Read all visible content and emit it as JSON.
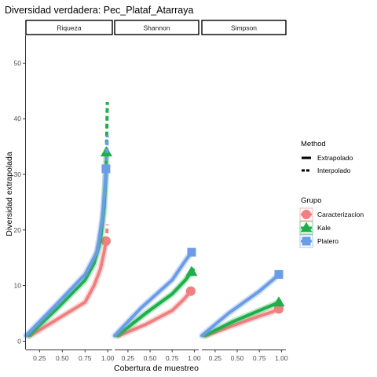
{
  "chart_data": {
    "type": "line",
    "title": "Diversidad verdadera: Pec_Plataf_Atarraya",
    "xlabel": "Cobertura de muestreo",
    "ylabel": "Diversidad extrapolada",
    "x_ticks": [
      "0.25",
      "0.50",
      "0.75",
      "1.00"
    ],
    "x_tick_values": [
      0.25,
      0.5,
      0.75,
      1.0
    ],
    "xlim": [
      0.1,
      1.05
    ],
    "y_ticks": [
      "0",
      "10",
      "20",
      "30",
      "40",
      "50"
    ],
    "y_tick_values": [
      0,
      10,
      20,
      30,
      40,
      50
    ],
    "ylim": [
      -1.5,
      55
    ],
    "grid": false,
    "legend_position": "right",
    "panels": [
      {
        "strip": "Riqueza",
        "series": [
          {
            "group": "Caracterizacion",
            "interpolated": [
              [
                0.15,
                1
              ],
              [
                0.45,
                4
              ],
              [
                0.75,
                7
              ],
              [
                0.85,
                10
              ],
              [
                0.92,
                13
              ],
              [
                0.96,
                16
              ],
              [
                0.98,
                18
              ]
            ],
            "extrapolated": [
              [
                0.98,
                18
              ],
              [
                0.99,
                19.5
              ],
              [
                0.995,
                21
              ]
            ],
            "observed": [
              0.98,
              18
            ]
          },
          {
            "group": "Kale",
            "interpolated": [
              [
                0.13,
                1
              ],
              [
                0.45,
                6
              ],
              [
                0.75,
                11
              ],
              [
                0.85,
                14
              ],
              [
                0.92,
                18
              ],
              [
                0.96,
                24
              ],
              [
                0.98,
                30
              ],
              [
                0.985,
                34
              ]
            ],
            "extrapolated": [
              [
                0.985,
                34
              ],
              [
                0.99,
                38.5
              ],
              [
                0.995,
                43
              ]
            ],
            "observed": [
              0.985,
              34
            ]
          },
          {
            "group": "Platero",
            "interpolated": [
              [
                0.1,
                1
              ],
              [
                0.4,
                6
              ],
              [
                0.75,
                12
              ],
              [
                0.88,
                16
              ],
              [
                0.94,
                22
              ],
              [
                0.97,
                28
              ],
              [
                0.98,
                31
              ]
            ],
            "extrapolated": [
              [
                0.98,
                31
              ],
              [
                0.99,
                34
              ],
              [
                0.995,
                37
              ]
            ],
            "observed": [
              0.98,
              31
            ]
          }
        ]
      },
      {
        "strip": "Shannon",
        "series": [
          {
            "group": "Caracterizacion",
            "interpolated": [
              [
                0.15,
                1
              ],
              [
                0.45,
                3
              ],
              [
                0.75,
                5.5
              ],
              [
                0.88,
                7.5
              ],
              [
                0.96,
                9
              ]
            ],
            "extrapolated": [
              [
                0.96,
                9
              ],
              [
                0.98,
                9.3
              ],
              [
                1.0,
                9.6
              ]
            ],
            "observed": [
              0.96,
              9
            ]
          },
          {
            "group": "Kale",
            "interpolated": [
              [
                0.13,
                1
              ],
              [
                0.45,
                5
              ],
              [
                0.75,
                8.5
              ],
              [
                0.9,
                11
              ],
              [
                0.97,
                12.5
              ]
            ],
            "extrapolated": [
              [
                0.97,
                12.5
              ],
              [
                0.985,
                12.8
              ],
              [
                1.0,
                13
              ]
            ],
            "observed": [
              0.97,
              12.5
            ]
          },
          {
            "group": "Platero",
            "interpolated": [
              [
                0.1,
                1
              ],
              [
                0.4,
                6
              ],
              [
                0.75,
                11
              ],
              [
                0.9,
                14.5
              ],
              [
                0.97,
                16
              ]
            ],
            "extrapolated": [
              [
                0.97,
                16
              ],
              [
                0.985,
                16.1
              ],
              [
                1.0,
                16.2
              ]
            ],
            "observed": [
              0.97,
              16
            ]
          }
        ]
      },
      {
        "strip": "Simpson",
        "series": [
          {
            "group": "Caracterizacion",
            "interpolated": [
              [
                0.15,
                1
              ],
              [
                0.45,
                2.8
              ],
              [
                0.75,
                4.5
              ],
              [
                0.9,
                5.3
              ],
              [
                0.97,
                5.8
              ]
            ],
            "extrapolated": [
              [
                0.97,
                5.8
              ],
              [
                0.985,
                5.9
              ],
              [
                1.0,
                6
              ]
            ],
            "observed": [
              0.97,
              5.8
            ]
          },
          {
            "group": "Kale",
            "interpolated": [
              [
                0.13,
                1
              ],
              [
                0.45,
                3.5
              ],
              [
                0.75,
                5.5
              ],
              [
                0.9,
                6.5
              ],
              [
                0.97,
                7
              ]
            ],
            "extrapolated": [
              [
                0.97,
                7
              ],
              [
                0.985,
                7.1
              ],
              [
                1.0,
                7.2
              ]
            ],
            "observed": [
              0.97,
              7
            ]
          },
          {
            "group": "Platero",
            "interpolated": [
              [
                0.1,
                1
              ],
              [
                0.4,
                5
              ],
              [
                0.75,
                9
              ],
              [
                0.9,
                11
              ],
              [
                0.97,
                12
              ]
            ],
            "extrapolated": [
              [
                0.97,
                12
              ],
              [
                0.985,
                12.1
              ],
              [
                1.0,
                12.2
              ]
            ],
            "observed": [
              0.97,
              12
            ]
          }
        ]
      }
    ],
    "legend": {
      "method": {
        "title": "Method",
        "items": [
          {
            "label": "Extrapolado",
            "dash": "solid"
          },
          {
            "label": "Interpolado",
            "dash": "dashed"
          }
        ]
      },
      "grupo": {
        "title": "Grupo",
        "items": [
          {
            "label": "Caracterizacion",
            "color": "#F08080",
            "shape": "circle"
          },
          {
            "label": "Kale",
            "color": "#1DB04A",
            "shape": "triangle"
          },
          {
            "label": "Platero",
            "color": "#6A9CE8",
            "shape": "square"
          }
        ]
      }
    }
  }
}
